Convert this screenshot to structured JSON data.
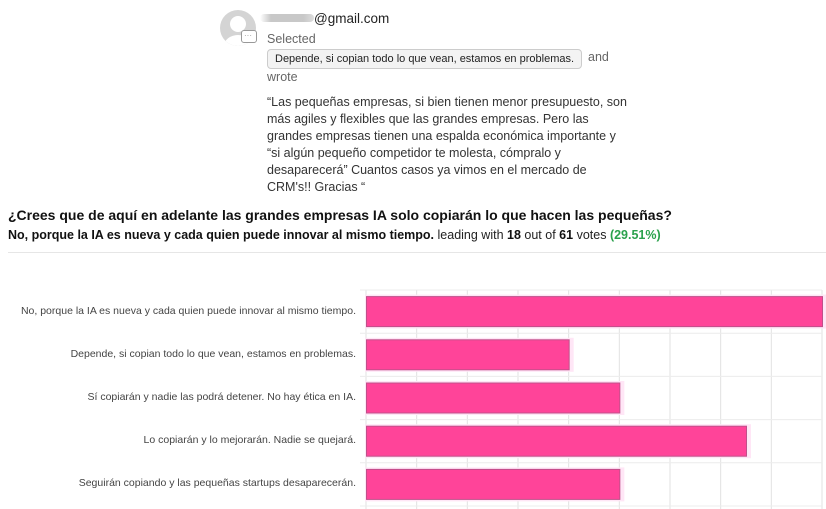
{
  "comment": {
    "email": "@gmail.com",
    "selected_label": "Selected",
    "selected_option": "Depende, si copian todo lo que vean, estamos en problemas.",
    "and_label": "and",
    "wrote_label": "wrote",
    "quote": "“Las pequeñas empresas, si bien tienen menor presupuesto, son más agiles y flexibles que las grandes empresas. Pero las grandes empresas tienen una espalda económica importante y “si algún pequeño competidor te molesta, cómpralo y desaparecerá” Cuantos casos ya vimos en el mercado de CRM's!! Gracias “"
  },
  "poll": {
    "question": "¿Crees que de aquí en adelante las grandes empresas IA solo copiarán lo que hacen las pequeñas?",
    "leader": "No, porque la IA es nueva y cada quien puede innovar al mismo tiempo.",
    "leading_with": "leading with",
    "leader_votes": "18",
    "out_of": "out of",
    "total_votes": "61",
    "votes_label": "votes",
    "percent": "(29.51%)"
  },
  "colors": {
    "bar": "#ff4499",
    "bar_border": "#c0508a",
    "percent": "#2aa14c"
  },
  "chart_data": {
    "type": "bar",
    "orientation": "horizontal",
    "categories": [
      "No, porque la IA es nueva y cada quien puede innovar al mismo tiempo.",
      "Depende, si copian todo lo que vean, estamos en problemas.",
      "Sí copiarán y nadie las podrá detener. No hay ética en IA.",
      "Lo copiarán y lo mejorarán. Nadie se quejará.",
      "Seguirán copiando y las pequeñas startups desaparecerán."
    ],
    "values": [
      18,
      8,
      10,
      15,
      10
    ],
    "xlim": [
      0,
      18
    ],
    "grid": true
  }
}
